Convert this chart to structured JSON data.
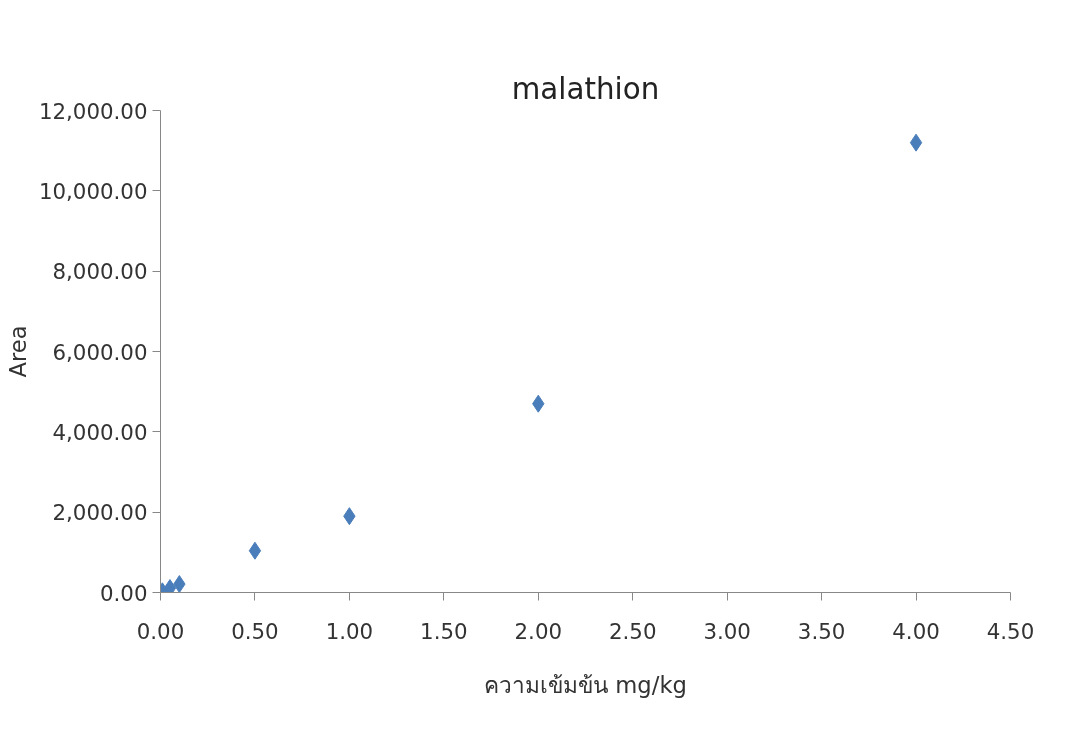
{
  "chart_data": {
    "type": "scatter",
    "title": "malathion",
    "xlabel": "ความเข้มข้น mg/kg",
    "ylabel": "Area",
    "x": [
      0.01,
      0.05,
      0.1,
      0.5,
      1.0,
      2.0,
      4.0
    ],
    "series": [
      {
        "color": "#4a7ebb",
        "values": [
          30,
          110,
          210,
          1040,
          1900,
          4700,
          11200
        ]
      }
    ],
    "marker": "diamond",
    "grid": false,
    "xlim": [
      0,
      4.5
    ],
    "ylim": [
      0,
      12000
    ],
    "xticks": [
      {
        "value": 0,
        "label": "0.00"
      },
      {
        "value": 0.5,
        "label": "0.50"
      },
      {
        "value": 1,
        "label": "1.00"
      },
      {
        "value": 1.5,
        "label": "1.50"
      },
      {
        "value": 2,
        "label": "2.00"
      },
      {
        "value": 2.5,
        "label": "2.50"
      },
      {
        "value": 3,
        "label": "3.00"
      },
      {
        "value": 3.5,
        "label": "3.50"
      },
      {
        "value": 4,
        "label": "4.00"
      },
      {
        "value": 4.5,
        "label": "4.50"
      }
    ],
    "yticks": [
      {
        "value": 0,
        "label": "0.00"
      },
      {
        "value": 2000,
        "label": "2,000.00"
      },
      {
        "value": 4000,
        "label": "4,000.00"
      },
      {
        "value": 6000,
        "label": "6,000.00"
      },
      {
        "value": 8000,
        "label": "8,000.00"
      },
      {
        "value": 10000,
        "label": "10,000.00"
      },
      {
        "value": 12000,
        "label": "12,000.00"
      }
    ]
  }
}
